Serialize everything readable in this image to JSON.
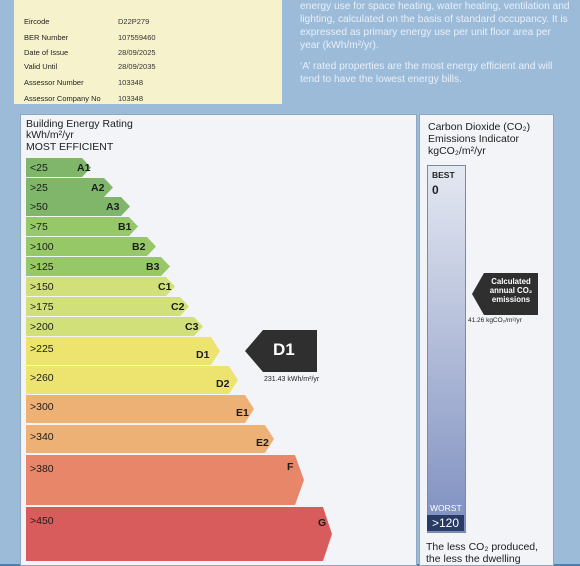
{
  "cert": {
    "rows": [
      {
        "key": "Eircode",
        "value": "D22P279"
      },
      {
        "key": "BER Number",
        "value": "107559460"
      },
      {
        "key": "Date of Issue",
        "value": "28/09/2025"
      },
      {
        "key": "Valid Until",
        "value": "28/09/2035"
      },
      {
        "key": "Assessor Number",
        "value": "103348"
      },
      {
        "key": "Assessor Company No",
        "value": "103348"
      }
    ]
  },
  "intro": {
    "p1": "energy use for space heating, water heating, ventilation and lighting, calculated on the basis of standard occupancy. It is expressed as primary energy use per unit floor area per year (kWh/m²/yr).",
    "p2": "‘A’ rated properties are the most energy efficient and will tend to have the lowest energy bills."
  },
  "rating": {
    "title": "Building Energy Rating",
    "unit": "kWh/m²/yr",
    "efficient": "MOST EFFICIENT",
    "bands": [
      {
        "range": "<25",
        "cls": "A1",
        "color": "#7fb66a"
      },
      {
        "range": ">25",
        "cls": "A2",
        "color": "#7fb66a"
      },
      {
        "range": ">50",
        "cls": "A3",
        "color": "#7fb66a"
      },
      {
        "range": ">75",
        "cls": "B1",
        "color": "#96c868"
      },
      {
        "range": ">100",
        "cls": "B2",
        "color": "#96c868"
      },
      {
        "range": ">125",
        "cls": "B3",
        "color": "#96c868"
      },
      {
        "range": ">150",
        "cls": "C1",
        "color": "#d2e079"
      },
      {
        "range": ">175",
        "cls": "C2",
        "color": "#d2e079"
      },
      {
        "range": ">200",
        "cls": "C3",
        "color": "#d2e079"
      },
      {
        "range": ">225",
        "cls": "D1",
        "color": "#ece46e"
      },
      {
        "range": ">260",
        "cls": "D2",
        "color": "#ece46e"
      },
      {
        "range": ">300",
        "cls": "E1",
        "color": "#eeb175"
      },
      {
        "range": ">340",
        "cls": "E2",
        "color": "#eeb175"
      },
      {
        "range": ">380",
        "cls": "F",
        "color": "#e8866a"
      },
      {
        "range": ">450",
        "cls": "G",
        "color": "#d95c5c"
      }
    ],
    "current": {
      "cls": "D1",
      "value": "231.43 kWh/m²/yr"
    }
  },
  "co2": {
    "title_line1": "Carbon Dioxide (CO₂)",
    "title_line2": "Emissions Indicator",
    "unit": "kgCO₂/m²/yr",
    "best": "BEST",
    "best_val": "0",
    "worst": "WORST",
    "worst_val": ">120",
    "calc_label": "Calculated annual CO₂ emissions",
    "calc_value": "41.26 kgCO₂/m²/yr",
    "footer": "The less CO₂ produced, the less the dwelling"
  }
}
